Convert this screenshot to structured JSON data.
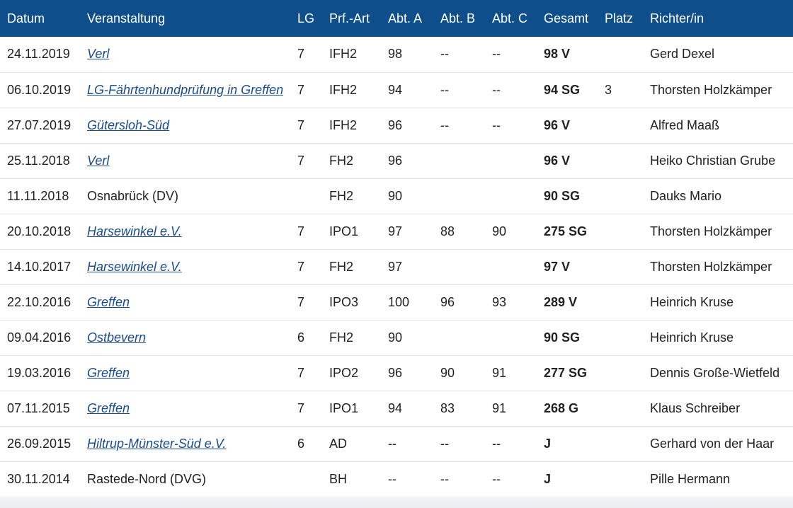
{
  "headers": {
    "datum": "Datum",
    "veranstaltung": "Veranstaltung",
    "lg": "LG",
    "prf_art": "Prf.-Art",
    "abt_a": "Abt. A",
    "abt_b": "Abt. B",
    "abt_c": "Abt. C",
    "gesamt": "Gesamt",
    "platz": "Platz",
    "richter": "Richter/in"
  },
  "rows": [
    {
      "datum": "24.11.2019",
      "veranstaltung": "Verl",
      "link": true,
      "lg": "7",
      "prf": "IFH2",
      "a": "98",
      "b": "--",
      "c": "--",
      "gesamt": "98 V",
      "platz": "",
      "richter": "Gerd Dexel"
    },
    {
      "datum": "06.10.2019",
      "veranstaltung": "LG-Fährtenhundprüfung in Greffen",
      "link": true,
      "lg": "7",
      "prf": "IFH2",
      "a": "94",
      "b": "--",
      "c": "--",
      "gesamt": "94 SG",
      "platz": "3",
      "richter": "Thorsten Holzkämper"
    },
    {
      "datum": "27.07.2019",
      "veranstaltung": "Gütersloh-Süd",
      "link": true,
      "lg": "7",
      "prf": "IFH2",
      "a": "96",
      "b": "--",
      "c": "--",
      "gesamt": "96 V",
      "platz": "",
      "richter": "Alfred Maaß"
    },
    {
      "datum": "25.11.2018",
      "veranstaltung": "Verl",
      "link": true,
      "lg": "7",
      "prf": "FH2",
      "a": "96",
      "b": "",
      "c": "",
      "gesamt": "96 V",
      "platz": "",
      "richter": "Heiko Christian Grube"
    },
    {
      "datum": "11.11.2018",
      "veranstaltung": "Osnabrück (DV)",
      "link": false,
      "lg": "",
      "prf": "FH2",
      "a": "90",
      "b": "",
      "c": "",
      "gesamt": "90 SG",
      "platz": "",
      "richter": "Dauks Mario"
    },
    {
      "datum": "20.10.2018",
      "veranstaltung": "Harsewinkel e.V.",
      "link": true,
      "lg": "7",
      "prf": "IPO1",
      "a": "97",
      "b": "88",
      "c": "90",
      "gesamt": "275 SG",
      "platz": "",
      "richter": "Thorsten Holzkämper"
    },
    {
      "datum": "14.10.2017",
      "veranstaltung": "Harsewinkel e.V.",
      "link": true,
      "lg": "7",
      "prf": "FH2",
      "a": "97",
      "b": "",
      "c": "",
      "gesamt": "97 V",
      "platz": "",
      "richter": "Thorsten Holzkämper"
    },
    {
      "datum": "22.10.2016",
      "veranstaltung": "Greffen",
      "link": true,
      "lg": "7",
      "prf": "IPO3",
      "a": "100",
      "b": "96",
      "c": "93",
      "gesamt": "289 V",
      "platz": "",
      "richter": "Heinrich Kruse"
    },
    {
      "datum": "09.04.2016",
      "veranstaltung": "Ostbevern",
      "link": true,
      "lg": "6",
      "prf": "FH2",
      "a": "90",
      "b": "",
      "c": "",
      "gesamt": "90 SG",
      "platz": "",
      "richter": "Heinrich Kruse"
    },
    {
      "datum": "19.03.2016",
      "veranstaltung": "Greffen",
      "link": true,
      "lg": "7",
      "prf": "IPO2",
      "a": "96",
      "b": "90",
      "c": "91",
      "gesamt": "277 SG",
      "platz": "",
      "richter": "Dennis Große-Wietfeld"
    },
    {
      "datum": "07.11.2015",
      "veranstaltung": "Greffen",
      "link": true,
      "lg": "7",
      "prf": "IPO1",
      "a": "94",
      "b": "83",
      "c": "91",
      "gesamt": "268 G",
      "platz": "",
      "richter": "Klaus Schreiber"
    },
    {
      "datum": "26.09.2015",
      "veranstaltung": "Hiltrup-Münster-Süd e.V.",
      "link": true,
      "lg": "6",
      "prf": "AD",
      "a": "--",
      "b": "--",
      "c": "--",
      "gesamt": "J",
      "platz": "",
      "richter": "Gerhard von der Haar"
    },
    {
      "datum": "30.11.2014",
      "veranstaltung": "Rastede-Nord (DVG)",
      "link": false,
      "lg": "",
      "prf": "BH",
      "a": "--",
      "b": "--",
      "c": "--",
      "gesamt": "J",
      "platz": "",
      "richter": "Pille Hermann"
    }
  ],
  "colors": {
    "header_bg": "#0e4e8a",
    "link": "#1a4c8b",
    "row_border": "#e2e2e2"
  }
}
